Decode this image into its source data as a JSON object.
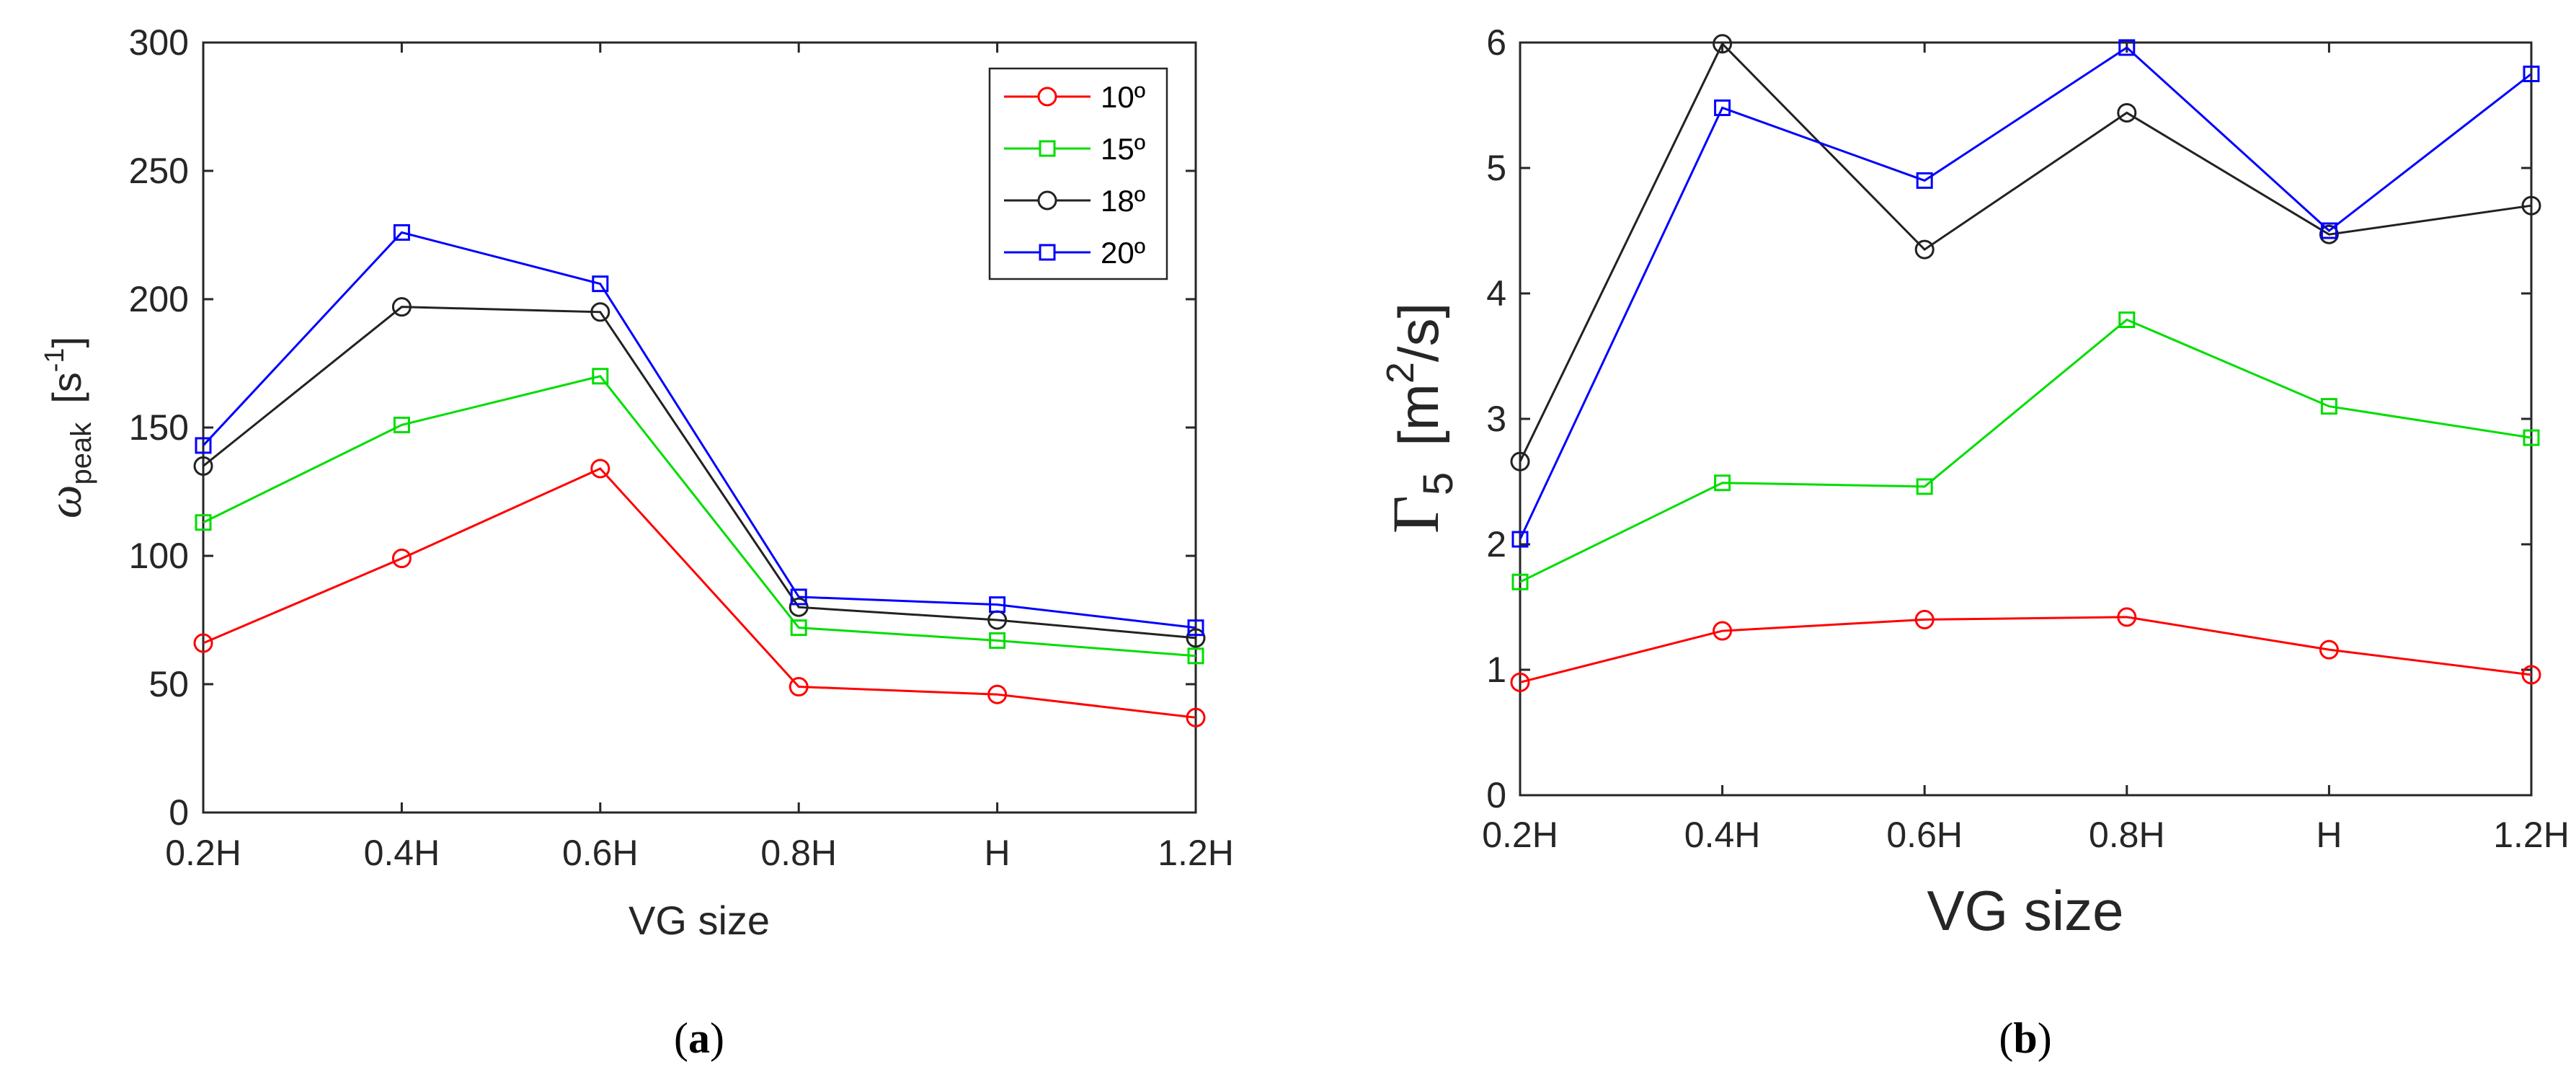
{
  "figure_captions": {
    "a": "a",
    "b": "b"
  },
  "series_colors": {
    "10": "#ff0000",
    "15": "#00dd00",
    "18": "#222222",
    "20": "#0000ff"
  },
  "chart_data": [
    {
      "type": "line",
      "panel": "a",
      "categories": [
        "0.2H",
        "0.4H",
        "0.6H",
        "0.8H",
        "H",
        "1.2H"
      ],
      "ylabel_symbol": "ω",
      "ylabel_subscript": "peak",
      "ylabel_unit_open": "[s",
      "ylabel_unit_sup": "-1",
      "ylabel_unit_close": "]",
      "xlabel": "VG size",
      "ylim": [
        0,
        300
      ],
      "yticks": [
        "0",
        "50",
        "100",
        "150",
        "200",
        "250",
        "300"
      ],
      "legend_position": "top-right",
      "series": [
        {
          "name": "10º",
          "marker": "circle",
          "color_key": "10",
          "values": [
            66,
            99,
            134,
            49,
            46,
            37
          ]
        },
        {
          "name": "15º",
          "marker": "square",
          "color_key": "15",
          "values": [
            113,
            151,
            170,
            72,
            67,
            61
          ]
        },
        {
          "name": "18º",
          "marker": "circle",
          "color_key": "18",
          "values": [
            135,
            197,
            195,
            80,
            75,
            68
          ]
        },
        {
          "name": "20º",
          "marker": "square",
          "color_key": "20",
          "values": [
            143,
            226,
            206,
            84,
            81,
            72
          ]
        }
      ]
    },
    {
      "type": "line",
      "panel": "b",
      "categories": [
        "0.2H",
        "0.4H",
        "0.6H",
        "0.8H",
        "H",
        "1.2H"
      ],
      "ylabel_symbol": "Γ",
      "ylabel_subscript": "5",
      "ylabel_unit_open": "[m",
      "ylabel_unit_sup": "2",
      "ylabel_unit_close": "/s]",
      "xlabel": "VG size",
      "ylim": [
        0,
        6
      ],
      "yticks": [
        "0",
        "1",
        "2",
        "3",
        "4",
        "5",
        "6"
      ],
      "series": [
        {
          "name": "10º",
          "marker": "circle",
          "color_key": "10",
          "values": [
            0.9,
            1.31,
            1.4,
            1.42,
            1.16,
            0.96
          ]
        },
        {
          "name": "15º",
          "marker": "square",
          "color_key": "15",
          "values": [
            1.7,
            2.49,
            2.46,
            3.79,
            3.1,
            2.85
          ]
        },
        {
          "name": "18º",
          "marker": "circle",
          "color_key": "18",
          "values": [
            2.66,
            5.99,
            4.35,
            5.44,
            4.47,
            4.7
          ]
        },
        {
          "name": "20º",
          "marker": "square",
          "color_key": "20",
          "values": [
            2.04,
            5.48,
            4.9,
            5.96,
            4.5,
            5.75
          ]
        }
      ]
    }
  ]
}
